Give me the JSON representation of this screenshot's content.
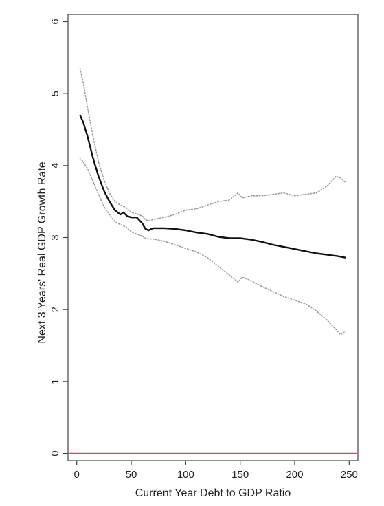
{
  "chart_data": {
    "type": "line",
    "title": "",
    "xlabel": "Current Year Debt to GDP Ratio",
    "ylabel": "Next 3 Years' Real GDP Growth Rate",
    "xlim": [
      -8,
      258
    ],
    "ylim": [
      -0.1,
      6.1
    ],
    "x_ticks": [
      0,
      50,
      100,
      150,
      200,
      250
    ],
    "y_ticks": [
      0,
      1,
      2,
      3,
      4,
      5,
      6
    ],
    "grid": false,
    "legend": "none",
    "colors": {
      "estimate": "#111111",
      "band": "#9a9a9a",
      "reference": "#c0506a",
      "frame": "#444444"
    },
    "reference_line_y": 0,
    "series": [
      {
        "role": "estimate",
        "style": "solid",
        "points": [
          [
            3,
            4.7
          ],
          [
            6,
            4.6
          ],
          [
            10,
            4.4
          ],
          [
            15,
            4.1
          ],
          [
            20,
            3.85
          ],
          [
            25,
            3.65
          ],
          [
            30,
            3.5
          ],
          [
            35,
            3.38
          ],
          [
            40,
            3.32
          ],
          [
            43,
            3.35
          ],
          [
            46,
            3.3
          ],
          [
            50,
            3.28
          ],
          [
            55,
            3.28
          ],
          [
            60,
            3.2
          ],
          [
            63,
            3.12
          ],
          [
            66,
            3.1
          ],
          [
            70,
            3.13
          ],
          [
            80,
            3.13
          ],
          [
            90,
            3.12
          ],
          [
            100,
            3.1
          ],
          [
            110,
            3.07
          ],
          [
            120,
            3.05
          ],
          [
            130,
            3.01
          ],
          [
            140,
            2.99
          ],
          [
            150,
            2.99
          ],
          [
            160,
            2.97
          ],
          [
            170,
            2.94
          ],
          [
            180,
            2.9
          ],
          [
            190,
            2.87
          ],
          [
            200,
            2.84
          ],
          [
            210,
            2.81
          ],
          [
            220,
            2.78
          ],
          [
            230,
            2.76
          ],
          [
            240,
            2.74
          ],
          [
            247,
            2.72
          ]
        ]
      },
      {
        "role": "upper-band",
        "style": "dotted",
        "points": [
          [
            3,
            5.35
          ],
          [
            6,
            5.15
          ],
          [
            10,
            4.8
          ],
          [
            15,
            4.4
          ],
          [
            20,
            4.05
          ],
          [
            25,
            3.8
          ],
          [
            30,
            3.62
          ],
          [
            35,
            3.5
          ],
          [
            40,
            3.45
          ],
          [
            45,
            3.42
          ],
          [
            50,
            3.35
          ],
          [
            55,
            3.33
          ],
          [
            60,
            3.3
          ],
          [
            63,
            3.25
          ],
          [
            66,
            3.23
          ],
          [
            70,
            3.25
          ],
          [
            80,
            3.28
          ],
          [
            90,
            3.32
          ],
          [
            100,
            3.38
          ],
          [
            110,
            3.4
          ],
          [
            120,
            3.45
          ],
          [
            130,
            3.5
          ],
          [
            140,
            3.52
          ],
          [
            148,
            3.62
          ],
          [
            152,
            3.55
          ],
          [
            160,
            3.58
          ],
          [
            170,
            3.58
          ],
          [
            180,
            3.6
          ],
          [
            190,
            3.62
          ],
          [
            200,
            3.58
          ],
          [
            210,
            3.6
          ],
          [
            220,
            3.62
          ],
          [
            230,
            3.72
          ],
          [
            238,
            3.85
          ],
          [
            242,
            3.83
          ],
          [
            247,
            3.76
          ]
        ]
      },
      {
        "role": "lower-band",
        "style": "dotted",
        "points": [
          [
            3,
            4.1
          ],
          [
            6,
            4.05
          ],
          [
            10,
            3.95
          ],
          [
            15,
            3.78
          ],
          [
            20,
            3.6
          ],
          [
            25,
            3.43
          ],
          [
            30,
            3.32
          ],
          [
            35,
            3.22
          ],
          [
            40,
            3.18
          ],
          [
            45,
            3.15
          ],
          [
            50,
            3.08
          ],
          [
            55,
            3.05
          ],
          [
            60,
            3.02
          ],
          [
            63,
            2.99
          ],
          [
            66,
            2.98
          ],
          [
            70,
            2.98
          ],
          [
            80,
            2.95
          ],
          [
            90,
            2.9
          ],
          [
            100,
            2.85
          ],
          [
            110,
            2.8
          ],
          [
            120,
            2.72
          ],
          [
            130,
            2.6
          ],
          [
            140,
            2.48
          ],
          [
            148,
            2.38
          ],
          [
            152,
            2.45
          ],
          [
            160,
            2.4
          ],
          [
            170,
            2.32
          ],
          [
            180,
            2.25
          ],
          [
            190,
            2.18
          ],
          [
            200,
            2.13
          ],
          [
            210,
            2.08
          ],
          [
            220,
            1.98
          ],
          [
            230,
            1.85
          ],
          [
            238,
            1.72
          ],
          [
            242,
            1.65
          ],
          [
            247,
            1.7
          ]
        ]
      }
    ]
  }
}
